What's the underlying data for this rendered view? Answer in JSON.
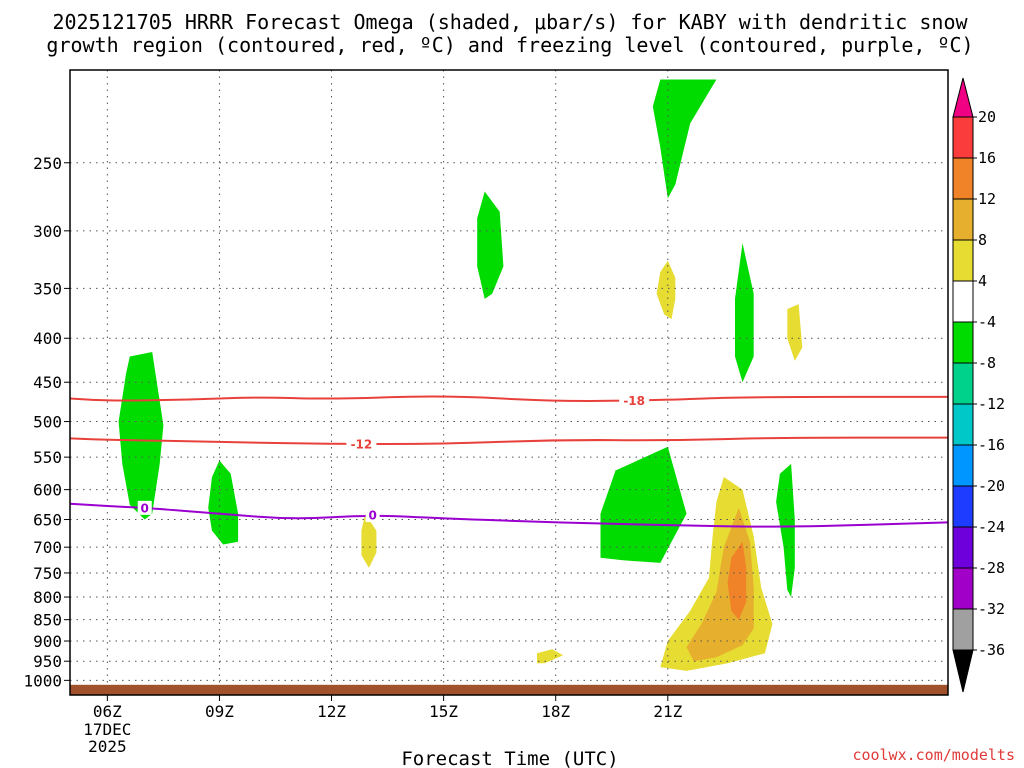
{
  "chart_data": {
    "type": "time-height contour",
    "title_line1": "2025121705 HRRR Forecast Omega (shaded, μbar/s) for KABY with dendritic snow",
    "title_line2": "growth region (contoured, red, ºC) and freezing level (contoured, purple, ºC)",
    "xlabel": "Forecast Time (UTC)",
    "x_range_hours": [
      5,
      28.5
    ],
    "x_ticks": [
      {
        "h": 6,
        "label": "06Z"
      },
      {
        "h": 9,
        "label": "09Z"
      },
      {
        "h": 12,
        "label": "12Z"
      },
      {
        "h": 15,
        "label": "15Z"
      },
      {
        "h": 18,
        "label": "18Z"
      },
      {
        "h": 21,
        "label": "21Z"
      }
    ],
    "x_date_label": [
      "17DEC",
      "2025"
    ],
    "y_axis_pressure_hpa": [
      1020,
      200
    ],
    "y_ticks": [
      250,
      300,
      350,
      400,
      450,
      500,
      550,
      600,
      650,
      700,
      750,
      800,
      850,
      900,
      950,
      1000
    ],
    "colorbar": {
      "levels": [
        -36,
        -32,
        -28,
        -24,
        -20,
        -16,
        -12,
        -8,
        -4,
        4,
        8,
        12,
        16,
        20
      ],
      "labels": [
        "-36",
        "-32",
        "-28",
        "-24",
        "-20",
        "-16",
        "-12",
        "-8",
        "-4",
        "4",
        "8",
        "12",
        "16",
        "20"
      ],
      "colors": [
        "#000000",
        "#a0a0a0",
        "#a000c8",
        "#6e00dc",
        "#1e3cff",
        "#0096ff",
        "#00c8c8",
        "#00d28c",
        "#00dc00",
        "#ffffff",
        "#e6dc32",
        "#e6af2d",
        "#f08228",
        "#fa3c3c",
        "#f00082"
      ]
    },
    "contours": [
      {
        "name": "-18",
        "color": "#e8413c",
        "points": [
          [
            5,
            470
          ],
          [
            6,
            473
          ],
          [
            8,
            472
          ],
          [
            10,
            468
          ],
          [
            12,
            471
          ],
          [
            15,
            466
          ],
          [
            18,
            474
          ],
          [
            21,
            472
          ],
          [
            23,
            468
          ],
          [
            28.5,
            468
          ]
        ],
        "label_h": 20.1
      },
      {
        "name": "-12",
        "color": "#e8413c",
        "points": [
          [
            5,
            523
          ],
          [
            6,
            525
          ],
          [
            9,
            528
          ],
          [
            12,
            531
          ],
          [
            15,
            531
          ],
          [
            18,
            525
          ],
          [
            21,
            526
          ],
          [
            24,
            522
          ],
          [
            28.5,
            522
          ]
        ],
        "label_h": 12.8
      },
      {
        "name": "0",
        "color": "#9b00d0",
        "points": [
          [
            5,
            623
          ],
          [
            6,
            627
          ],
          [
            7,
            630
          ],
          [
            9,
            640
          ],
          [
            11,
            650
          ],
          [
            13,
            642
          ],
          [
            15,
            648
          ],
          [
            18,
            655
          ],
          [
            21,
            660
          ],
          [
            24,
            664
          ],
          [
            28.5,
            655
          ]
        ],
        "label_h": 7.0,
        "label_h2": 13.1
      }
    ],
    "omega_regions": [
      {
        "value": -6,
        "color": "#00dc00",
        "points": [
          [
            6.6,
            420
          ],
          [
            7.2,
            415
          ],
          [
            7.5,
            505
          ],
          [
            7.4,
            560
          ],
          [
            7.2,
            640
          ],
          [
            7.0,
            650
          ],
          [
            6.6,
            625
          ],
          [
            6.4,
            560
          ],
          [
            6.3,
            500
          ],
          [
            6.5,
            440
          ]
        ]
      },
      {
        "value": -6,
        "color": "#00dc00",
        "points": [
          [
            9,
            555
          ],
          [
            9.3,
            575
          ],
          [
            9.5,
            640
          ],
          [
            9.5,
            690
          ],
          [
            9.1,
            695
          ],
          [
            8.8,
            670
          ],
          [
            8.7,
            630
          ],
          [
            8.8,
            580
          ]
        ]
      },
      {
        "value": -6,
        "color": "#00dc00",
        "points": [
          [
            16.1,
            270
          ],
          [
            16.5,
            285
          ],
          [
            16.6,
            330
          ],
          [
            16.3,
            355
          ],
          [
            16.1,
            360
          ],
          [
            15.9,
            330
          ],
          [
            15.9,
            290
          ]
        ]
      },
      {
        "value": -6,
        "color": "#00dc00",
        "points": [
          [
            19.6,
            570
          ],
          [
            21.0,
            535
          ],
          [
            21.5,
            640
          ],
          [
            20.8,
            730
          ],
          [
            19.8,
            725
          ],
          [
            19.2,
            720
          ],
          [
            19.2,
            640
          ]
        ]
      },
      {
        "value": -6,
        "color": "#00dc00",
        "points": [
          [
            20.8,
            200
          ],
          [
            22.3,
            200
          ],
          [
            21.6,
            225
          ],
          [
            21.2,
            265
          ],
          [
            21.0,
            275
          ],
          [
            20.8,
            240
          ],
          [
            20.6,
            215
          ]
        ]
      },
      {
        "value": -6,
        "color": "#00dc00",
        "points": [
          [
            23.0,
            310
          ],
          [
            23.3,
            355
          ],
          [
            23.3,
            420
          ],
          [
            23.0,
            450
          ],
          [
            22.8,
            420
          ],
          [
            22.8,
            360
          ]
        ]
      },
      {
        "value": -6,
        "color": "#00dc00",
        "points": [
          [
            24.0,
            575
          ],
          [
            24.3,
            560
          ],
          [
            24.4,
            650
          ],
          [
            24.4,
            740
          ],
          [
            24.3,
            800
          ],
          [
            24.2,
            785
          ],
          [
            24.1,
            700
          ],
          [
            23.9,
            620
          ]
        ]
      },
      {
        "value": 6,
        "color": "#e6dc32",
        "points": [
          [
            12.9,
            640
          ],
          [
            13.2,
            670
          ],
          [
            13.2,
            710
          ],
          [
            13.0,
            740
          ],
          [
            12.8,
            715
          ],
          [
            12.8,
            670
          ]
        ]
      },
      {
        "value": 6,
        "color": "#e6dc32",
        "points": [
          [
            21.0,
            325
          ],
          [
            21.2,
            340
          ],
          [
            21.2,
            360
          ],
          [
            21.1,
            380
          ],
          [
            20.9,
            375
          ],
          [
            20.7,
            355
          ],
          [
            20.8,
            335
          ]
        ]
      },
      {
        "value": 6,
        "color": "#e6dc32",
        "points": [
          [
            17.5,
            930
          ],
          [
            17.9,
            920
          ],
          [
            18.2,
            935
          ],
          [
            17.7,
            955
          ],
          [
            17.5,
            955
          ]
        ]
      },
      {
        "value": 6,
        "color": "#e6dc32",
        "points": [
          [
            24.2,
            370
          ],
          [
            24.5,
            365
          ],
          [
            24.6,
            410
          ],
          [
            24.4,
            425
          ],
          [
            24.2,
            400
          ]
        ]
      },
      {
        "value": 6,
        "color": "#e6dc32",
        "points": [
          [
            22.5,
            580
          ],
          [
            23.0,
            600
          ],
          [
            23.3,
            680
          ],
          [
            23.5,
            780
          ],
          [
            23.8,
            860
          ],
          [
            23.6,
            930
          ],
          [
            22.6,
            955
          ],
          [
            21.5,
            975
          ],
          [
            20.8,
            965
          ],
          [
            21.0,
            900
          ],
          [
            21.6,
            830
          ],
          [
            22.1,
            760
          ],
          [
            22.2,
            680
          ],
          [
            22.3,
            620
          ]
        ]
      },
      {
        "value": 10,
        "color": "#e6af2d",
        "points": [
          [
            22.9,
            630
          ],
          [
            23.2,
            690
          ],
          [
            23.3,
            780
          ],
          [
            23.3,
            870
          ],
          [
            23.0,
            910
          ],
          [
            22.3,
            940
          ],
          [
            21.7,
            950
          ],
          [
            21.5,
            915
          ],
          [
            21.9,
            860
          ],
          [
            22.3,
            790
          ],
          [
            22.5,
            700
          ]
        ]
      },
      {
        "value": 14,
        "color": "#f08228",
        "points": [
          [
            23.0,
            690
          ],
          [
            23.1,
            740
          ],
          [
            23.1,
            810
          ],
          [
            22.9,
            850
          ],
          [
            22.7,
            830
          ],
          [
            22.6,
            770
          ],
          [
            22.7,
            720
          ]
        ]
      }
    ],
    "ground_level_hpa": 1012
  },
  "credit": "coolwx.com/modelts"
}
